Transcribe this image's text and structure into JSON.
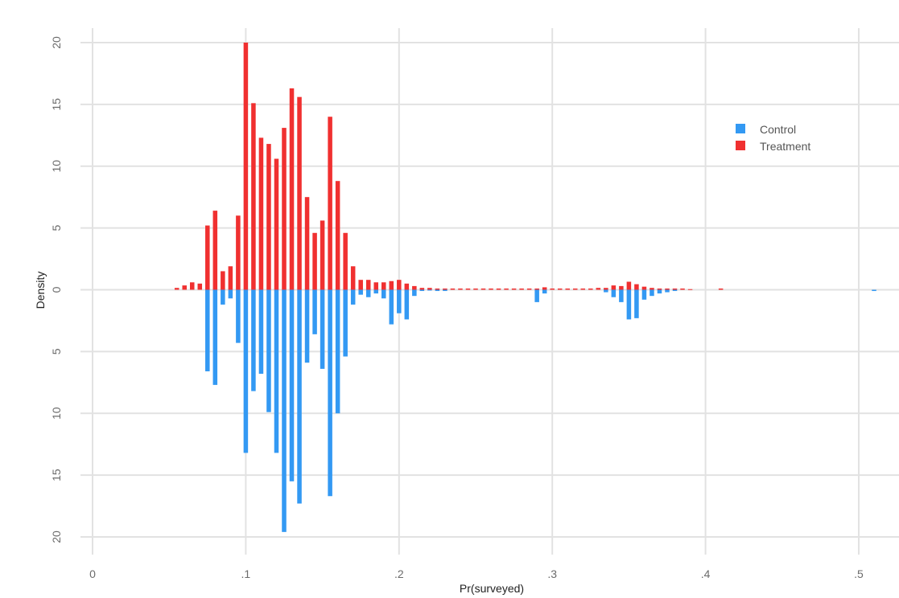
{
  "chart_data": {
    "type": "bar",
    "subtype": "mirrored histogram",
    "title": "",
    "xlabel": "Pr(surveyed)",
    "ylabel": "Density",
    "xlim": [
      0,
      0.52
    ],
    "ylim": [
      -20,
      20
    ],
    "x_ticks": [
      {
        "value": 0.0,
        "label": "0"
      },
      {
        "value": 0.1,
        "label": ".1"
      },
      {
        "value": 0.2,
        "label": ".2"
      },
      {
        "value": 0.3,
        "label": ".3"
      },
      {
        "value": 0.4,
        "label": ".4"
      },
      {
        "value": 0.5,
        "label": ".5"
      }
    ],
    "y_ticks": [
      {
        "value": 20,
        "label": "20"
      },
      {
        "value": 15,
        "label": "15"
      },
      {
        "value": 10,
        "label": "10"
      },
      {
        "value": 5,
        "label": "5"
      },
      {
        "value": 0,
        "label": "0"
      },
      {
        "value": -5,
        "label": "5"
      },
      {
        "value": -10,
        "label": "10"
      },
      {
        "value": -15,
        "label": "15"
      },
      {
        "value": -20,
        "label": "20"
      }
    ],
    "grid": true,
    "legend_position": "top-right",
    "bin_width": 0.005,
    "series": [
      {
        "name": "Treatment",
        "color": "#f03030",
        "direction": "up",
        "x": [
          0.055,
          0.06,
          0.065,
          0.07,
          0.075,
          0.08,
          0.085,
          0.09,
          0.095,
          0.1,
          0.105,
          0.11,
          0.115,
          0.12,
          0.125,
          0.13,
          0.135,
          0.14,
          0.145,
          0.15,
          0.155,
          0.16,
          0.165,
          0.17,
          0.175,
          0.18,
          0.185,
          0.19,
          0.195,
          0.2,
          0.205,
          0.21,
          0.215,
          0.22,
          0.225,
          0.23,
          0.235,
          0.24,
          0.245,
          0.25,
          0.255,
          0.26,
          0.265,
          0.27,
          0.275,
          0.28,
          0.285,
          0.29,
          0.295,
          0.3,
          0.305,
          0.31,
          0.315,
          0.32,
          0.325,
          0.33,
          0.335,
          0.34,
          0.345,
          0.35,
          0.355,
          0.36,
          0.365,
          0.37,
          0.375,
          0.38,
          0.385,
          0.39,
          0.41
        ],
        "values": [
          0.15,
          0.35,
          0.6,
          0.5,
          5.2,
          6.4,
          1.5,
          1.9,
          6.0,
          20.0,
          15.1,
          12.3,
          11.8,
          10.6,
          13.1,
          16.3,
          15.6,
          7.5,
          4.6,
          5.6,
          14.0,
          8.8,
          4.6,
          1.9,
          0.8,
          0.8,
          0.6,
          0.6,
          0.7,
          0.8,
          0.5,
          0.3,
          0.15,
          0.15,
          0.1,
          0.1,
          0.1,
          0.1,
          0.1,
          0.1,
          0.1,
          0.1,
          0.1,
          0.1,
          0.1,
          0.1,
          0.1,
          0.1,
          0.2,
          0.1,
          0.1,
          0.1,
          0.1,
          0.1,
          0.1,
          0.15,
          0.15,
          0.35,
          0.3,
          0.65,
          0.45,
          0.25,
          0.15,
          0.1,
          0.1,
          0.1,
          0.1,
          0.05,
          0.1
        ]
      },
      {
        "name": "Control",
        "color": "#3399f3",
        "direction": "down",
        "x": [
          0.075,
          0.08,
          0.085,
          0.09,
          0.095,
          0.1,
          0.105,
          0.11,
          0.115,
          0.12,
          0.125,
          0.13,
          0.135,
          0.14,
          0.145,
          0.15,
          0.155,
          0.16,
          0.165,
          0.17,
          0.175,
          0.18,
          0.185,
          0.19,
          0.195,
          0.2,
          0.205,
          0.21,
          0.215,
          0.22,
          0.225,
          0.23,
          0.29,
          0.295,
          0.335,
          0.34,
          0.345,
          0.35,
          0.355,
          0.36,
          0.365,
          0.37,
          0.375,
          0.38,
          0.51
        ],
        "values": [
          6.6,
          7.7,
          1.2,
          0.7,
          4.3,
          13.2,
          8.2,
          6.8,
          9.9,
          13.2,
          19.6,
          15.5,
          17.3,
          5.9,
          3.6,
          6.4,
          16.7,
          10.0,
          5.4,
          1.2,
          0.4,
          0.6,
          0.3,
          0.7,
          2.8,
          1.9,
          2.4,
          0.5,
          0.1,
          0.05,
          0.1,
          0.1,
          1.0,
          0.3,
          0.2,
          0.6,
          1.0,
          2.4,
          2.3,
          0.8,
          0.5,
          0.3,
          0.2,
          0.1,
          0.1
        ]
      }
    ]
  }
}
